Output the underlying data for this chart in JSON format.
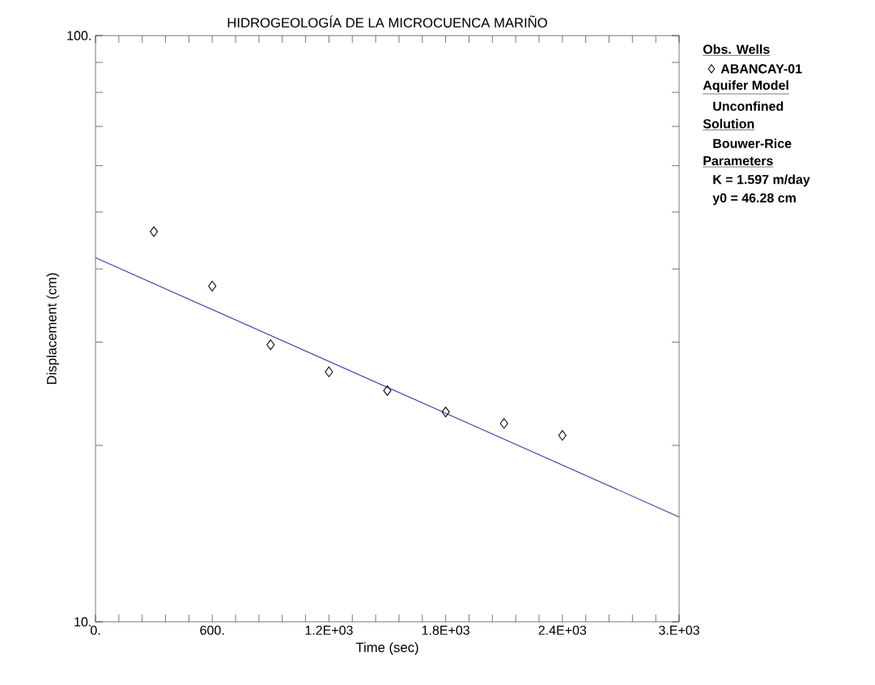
{
  "chart_data": {
    "type": "scatter",
    "title": "HIDROGEOLOGÍA DE LA MICROCUENCA MARIÑO",
    "xlabel": "Time (sec)",
    "ylabel": "Displacement (cm)",
    "log": "y",
    "legend": "right",
    "legend_title": "Obs. Wells",
    "xlim": [
      0,
      3000
    ],
    "ylim": [
      10,
      100
    ],
    "xticks": [
      {
        "value": 0,
        "label": "0."
      },
      {
        "value": 120,
        "label": null
      },
      {
        "value": 240,
        "label": null
      },
      {
        "value": 360,
        "label": null
      },
      {
        "value": 480,
        "label": null
      },
      {
        "value": 600,
        "label": "600."
      },
      {
        "value": 720,
        "label": null
      },
      {
        "value": 840,
        "label": null
      },
      {
        "value": 960,
        "label": null
      },
      {
        "value": 1080,
        "label": null
      },
      {
        "value": 1200,
        "label": "1.2E+03"
      },
      {
        "value": 1320,
        "label": null
      },
      {
        "value": 1440,
        "label": null
      },
      {
        "value": 1560,
        "label": null
      },
      {
        "value": 1680,
        "label": null
      },
      {
        "value": 1800,
        "label": "1.8E+03"
      },
      {
        "value": 1920,
        "label": null
      },
      {
        "value": 2040,
        "label": null
      },
      {
        "value": 2160,
        "label": null
      },
      {
        "value": 2280,
        "label": null
      },
      {
        "value": 2400,
        "label": "2.4E+03"
      },
      {
        "value": 2520,
        "label": null
      },
      {
        "value": 2640,
        "label": null
      },
      {
        "value": 2760,
        "label": null
      },
      {
        "value": 2880,
        "label": null
      },
      {
        "value": 3000,
        "label": "3.E+03"
      }
    ],
    "yticks": [
      {
        "value": 10,
        "label": "10."
      },
      {
        "value": 20,
        "label": null
      },
      {
        "value": 30,
        "label": null
      },
      {
        "value": 40,
        "label": null
      },
      {
        "value": 50,
        "label": null
      },
      {
        "value": 60,
        "label": null
      },
      {
        "value": 70,
        "label": null
      },
      {
        "value": 80,
        "label": null
      },
      {
        "value": 90,
        "label": null
      },
      {
        "value": 100,
        "label": "100."
      }
    ],
    "series": [
      {
        "name": "ABANCAY-01",
        "marker": "diamond",
        "color": "#000000",
        "x": [
          300,
          600,
          900,
          1200,
          1500,
          1800,
          2100,
          2400
        ],
        "values": [
          46.3,
          37.4,
          29.7,
          26.7,
          24.8,
          22.8,
          21.8,
          20.8
        ]
      },
      {
        "type": "line",
        "color": "#3a3aa8",
        "line_style": "solid",
        "x": [
          0,
          3000
        ],
        "values": [
          41.8,
          15.1
        ]
      }
    ],
    "annotations": [
      "Aquifer Model",
      "Unconfined",
      "Solution",
      "Bouwer-Rice",
      "Parameters",
      "K  = 1.597 m/day",
      "y0 = 46.28 cm"
    ]
  }
}
